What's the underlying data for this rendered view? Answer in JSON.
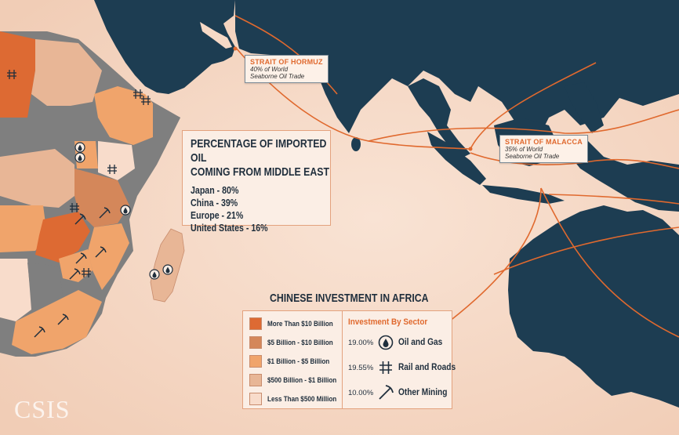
{
  "callouts": {
    "hormuz": {
      "title": "STRAIT OF HORMUZ",
      "line1": "40% of World",
      "line2": "Seaborne Oil Trade"
    },
    "malacca": {
      "title": "STRAIT OF MALACCA",
      "line1": "35% of World",
      "line2": "Seaborne Oil Trade"
    }
  },
  "oil_box": {
    "heading_line1": "PERCENTAGE OF IMPORTED OIL",
    "heading_line2": "COMING FROM MIDDLE EAST",
    "rows": [
      "Japan - 80%",
      "China - 39%",
      "Europe - 21%",
      "United States - 16%"
    ]
  },
  "investment": {
    "title": "CHINESE INVESTMENT IN AFRICA",
    "tiers": [
      {
        "label": "More Than $10 Billion",
        "color": "#dd6a33"
      },
      {
        "label": "$5 Billion - $10 Billion",
        "color": "#d4875a"
      },
      {
        "label": "$1 Billion - $5 Billion",
        "color": "#f0a46b"
      },
      {
        "label": "$500 Billion - $1 Billion",
        "color": "#e8b696"
      },
      {
        "label": "Less Than $500 Million",
        "color": "#f8dccb"
      }
    ],
    "sector_heading": "Investment By Sector",
    "sectors": [
      {
        "pct": "19.00%",
        "name": "Oil and Gas",
        "icon": "oil-drop-icon"
      },
      {
        "pct": "19.55%",
        "name": "Rail and Roads",
        "icon": "rail-icon"
      },
      {
        "pct": "10.00%",
        "name": "Other Mining",
        "icon": "pickaxe-icon"
      }
    ]
  },
  "colors": {
    "land": "#1d3d52",
    "sea": "#f6d9c6",
    "route": "#e0692e",
    "no_data": "#7f7f7f"
  },
  "logo": "CSIS"
}
